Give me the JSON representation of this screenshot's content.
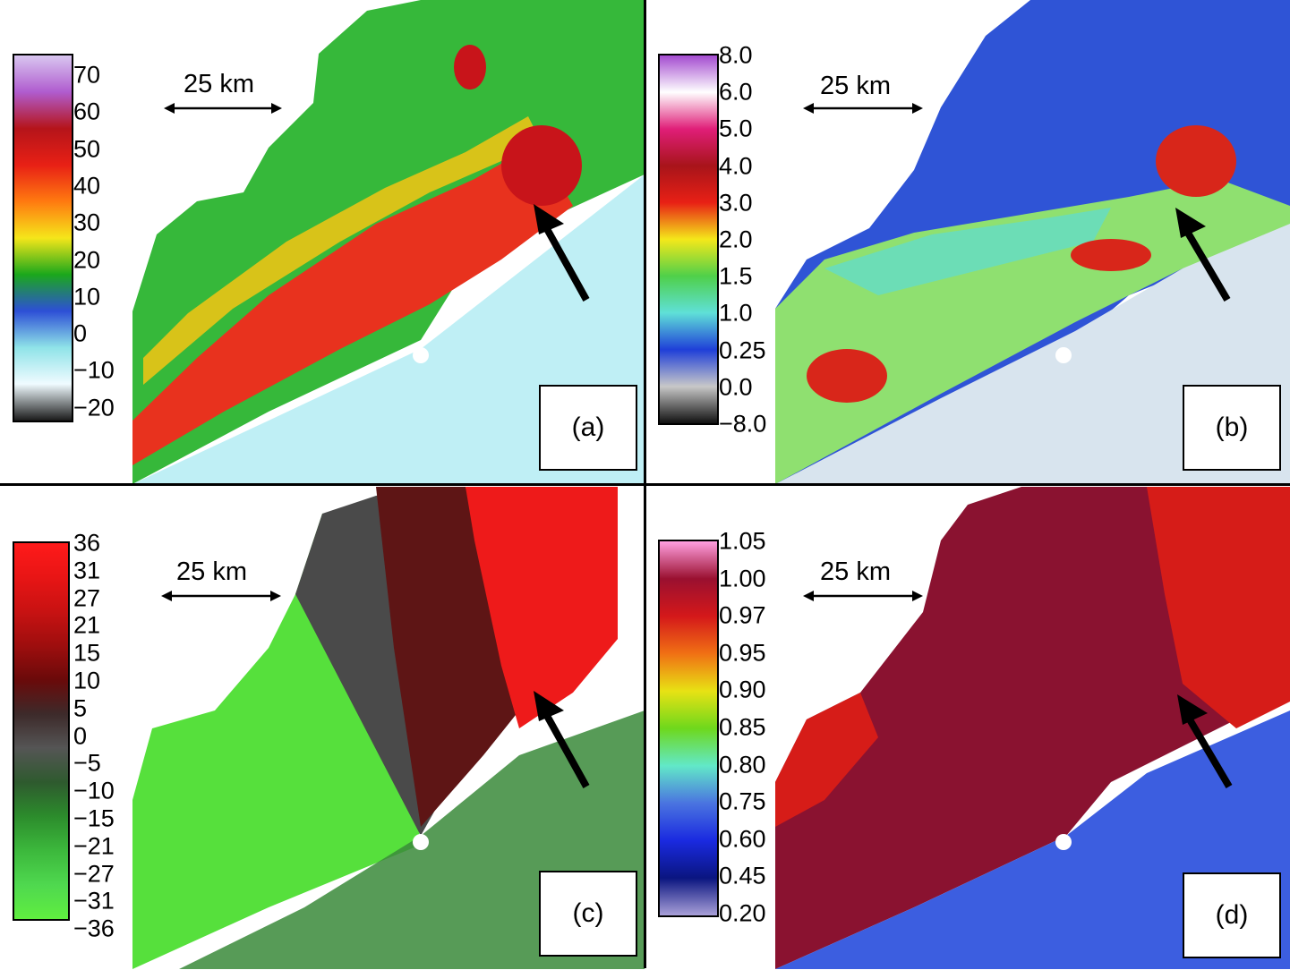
{
  "scale_label": "25 km",
  "panels": [
    {
      "label": "(a)",
      "colorbar": {
        "ticks": [
          "70",
          "60",
          "50",
          "40",
          "30",
          "20",
          "10",
          "0",
          "−10",
          "−20"
        ],
        "colors": [
          "#d9c6f0",
          "#b05ccf",
          "#b5141a",
          "#e82015",
          "#ff7a10",
          "#f5e61a",
          "#1ba81b",
          "#2d4fd6",
          "#8fe3e8",
          "#f0fbff",
          "#1a1a1a"
        ]
      },
      "palette": {
        "wedge": "#36b83a",
        "band": "#e8321e",
        "core": "#c8141a",
        "hot": "#f5c414",
        "clear": "#bfeff5"
      }
    },
    {
      "label": "(b)",
      "colorbar": {
        "ticks": [
          "8.0",
          "6.0",
          "5.0",
          "4.0",
          "3.0",
          "2.0",
          "1.5",
          "1.0",
          "0.25",
          "0.0",
          "−8.0"
        ],
        "colors": [
          "#a44bd0",
          "#ffffff",
          "#e01e78",
          "#a8141a",
          "#e82015",
          "#f4e81a",
          "#4fd04a",
          "#5fe0d8",
          "#1f3fd8",
          "#c8c8c8",
          "#111111"
        ]
      },
      "palette": {
        "wedge": "#2f54d6",
        "band": "#8fe070",
        "core": "#d8261a",
        "hot": "#63dcc8",
        "clear": "#d8e4ee"
      }
    },
    {
      "label": "(c)",
      "colorbar": {
        "ticks": [
          "36",
          "31",
          "27",
          "21",
          "15",
          "10",
          "5",
          "0",
          "−5",
          "−10",
          "−15",
          "−21",
          "−27",
          "−31",
          "−36"
        ],
        "colors": [
          "#ff1a1a",
          "#e81515",
          "#c81212",
          "#9e0e0e",
          "#6a0a0a",
          "#3d2a2a",
          "#555555",
          "#2e5a2e",
          "#2c8c2c",
          "#3cb83c",
          "#4fd84f",
          "#60ee40"
        ]
      },
      "palette": {
        "wedge": "#4a4a4a",
        "band": "#5e1515",
        "core": "#ee1a1a",
        "hot": "#56e03c",
        "clear": "#3a8a3a"
      }
    },
    {
      "label": "(d)",
      "colorbar": {
        "ticks": [
          "1.05",
          "1.00",
          "0.97",
          "0.95",
          "0.90",
          "0.85",
          "0.80",
          "0.75",
          "0.60",
          "0.45",
          "0.20"
        ],
        "colors": [
          "#ff9fe0",
          "#9a1030",
          "#d4181a",
          "#f07014",
          "#e8e214",
          "#6ed81c",
          "#62e8c8",
          "#4a74e0",
          "#1a2ae0",
          "#0a1580",
          "#a9a0d8"
        ]
      },
      "palette": {
        "wedge": "#8a1230",
        "band": "#8a1230",
        "core": "#d61c18",
        "hot": "#e84418",
        "clear": "#3c5ee0"
      }
    }
  ]
}
